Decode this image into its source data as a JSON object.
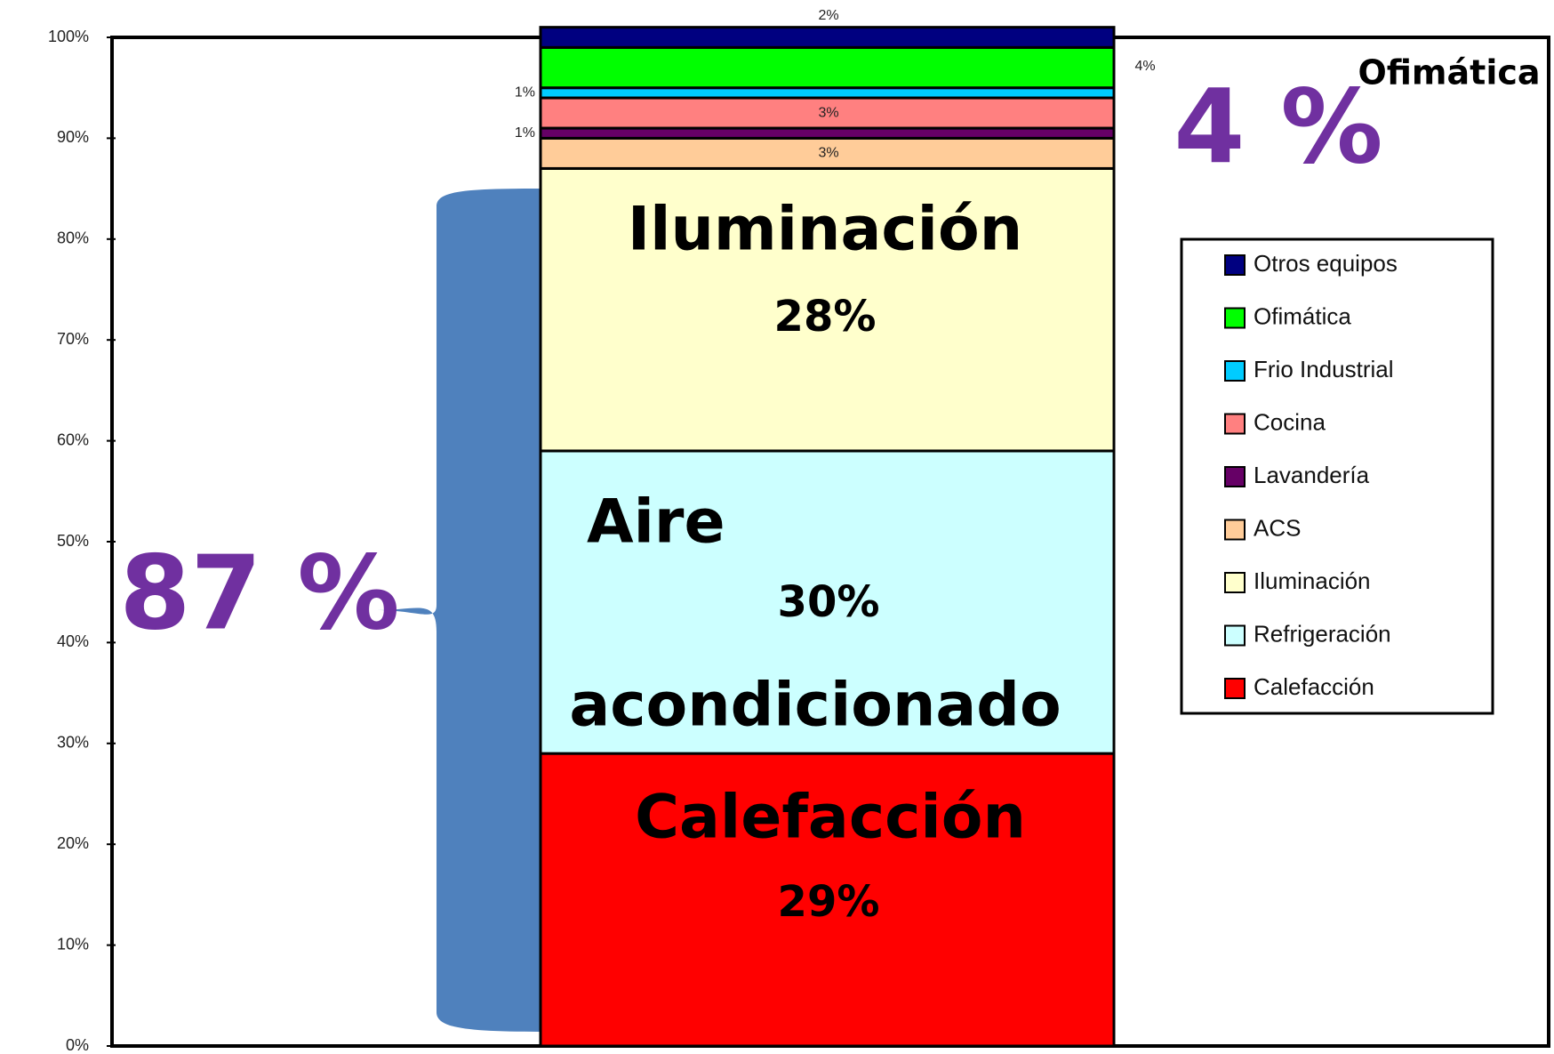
{
  "chart_data": {
    "type": "stacked_bar",
    "categories": [
      null
    ],
    "ylim": [
      0,
      100
    ],
    "yticks": [
      {
        "value": 0,
        "label": "0%"
      },
      {
        "value": 10,
        "label": "10%"
      },
      {
        "value": 20,
        "label": "20%"
      },
      {
        "value": 30,
        "label": "30%"
      },
      {
        "value": 40,
        "label": "40%"
      },
      {
        "value": 50,
        "label": "50%"
      },
      {
        "value": 60,
        "label": "60%"
      },
      {
        "value": 70,
        "label": "70%"
      },
      {
        "value": 80,
        "label": "80%"
      },
      {
        "value": 90,
        "label": "90%"
      },
      {
        "value": 100,
        "label": "100%"
      }
    ],
    "series": [
      {
        "name": "Calefacción",
        "color": "#ff0000",
        "values": [
          29
        ],
        "value_labels": [
          "29%"
        ]
      },
      {
        "name": "Refrigeración",
        "color": "#ccffff",
        "values": [
          30
        ],
        "value_labels": [
          "30%"
        ]
      },
      {
        "name": "Iluminación",
        "color": "#ffffcc",
        "values": [
          28
        ],
        "value_labels": [
          "28%"
        ]
      },
      {
        "name": "ACS",
        "color": "#ffcc99",
        "values": [
          3
        ],
        "value_labels": [
          "3%"
        ]
      },
      {
        "name": "Lavandería",
        "color": "#660066",
        "values": [
          1
        ],
        "value_labels": [
          "1%"
        ]
      },
      {
        "name": "Cocina",
        "color": "#ff8080",
        "values": [
          3
        ],
        "value_labels": [
          "3%"
        ]
      },
      {
        "name": "Frio Industrial",
        "color": "#00ccff",
        "values": [
          1
        ],
        "value_labels": [
          "1%"
        ]
      },
      {
        "name": "Ofimática",
        "color": "#00ff00",
        "values": [
          4
        ],
        "value_labels": [
          "4%"
        ]
      },
      {
        "name": "Otros equipos",
        "color": "#000080",
        "values": [
          2
        ],
        "value_labels": [
          "2%"
        ]
      }
    ],
    "annotations": [
      "Calefacción",
      "Aire",
      "acondicionado",
      "Iluminación",
      "87 %",
      "4 %",
      "Ofimática"
    ]
  }
}
